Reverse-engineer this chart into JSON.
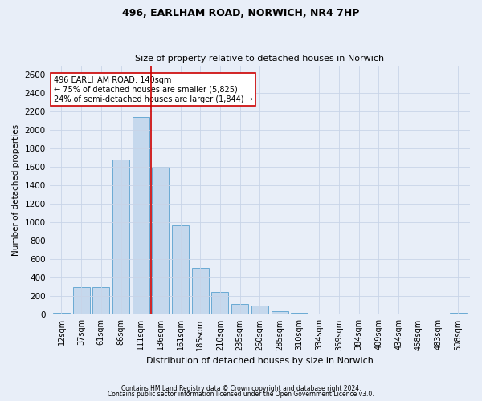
{
  "title1": "496, EARLHAM ROAD, NORWICH, NR4 7HP",
  "title2": "Size of property relative to detached houses in Norwich",
  "xlabel": "Distribution of detached houses by size in Norwich",
  "ylabel": "Number of detached properties",
  "categories": [
    "12sqm",
    "37sqm",
    "61sqm",
    "86sqm",
    "111sqm",
    "136sqm",
    "161sqm",
    "185sqm",
    "210sqm",
    "235sqm",
    "260sqm",
    "285sqm",
    "310sqm",
    "334sqm",
    "359sqm",
    "384sqm",
    "409sqm",
    "434sqm",
    "458sqm",
    "483sqm",
    "508sqm"
  ],
  "values": [
    20,
    295,
    295,
    1680,
    2140,
    1600,
    970,
    505,
    245,
    120,
    95,
    40,
    20,
    10,
    5,
    3,
    3,
    3,
    3,
    3,
    20
  ],
  "bar_color": "#c5d8ed",
  "bar_edge_color": "#6aaad4",
  "vline_x": 4.5,
  "vline_color": "#cc0000",
  "annotation_text": "496 EARLHAM ROAD: 140sqm\n← 75% of detached houses are smaller (5,825)\n24% of semi-detached houses are larger (1,844) →",
  "annotation_box_color": "white",
  "annotation_box_edge": "#cc0000",
  "ylim": [
    0,
    2700
  ],
  "yticks": [
    0,
    200,
    400,
    600,
    800,
    1000,
    1200,
    1400,
    1600,
    1800,
    2000,
    2200,
    2400,
    2600
  ],
  "grid_color": "#c8d4e8",
  "footer1": "Contains HM Land Registry data © Crown copyright and database right 2024.",
  "footer2": "Contains public sector information licensed under the Open Government Licence v3.0.",
  "bg_color": "#e8eef8",
  "plot_bg_color": "#e8eef8",
  "title1_fontsize": 9,
  "title2_fontsize": 8,
  "xlabel_fontsize": 8,
  "ylabel_fontsize": 7.5,
  "tick_fontsize": 7,
  "ytick_fontsize": 7.5,
  "annotation_fontsize": 7,
  "footer_fontsize": 5.5
}
